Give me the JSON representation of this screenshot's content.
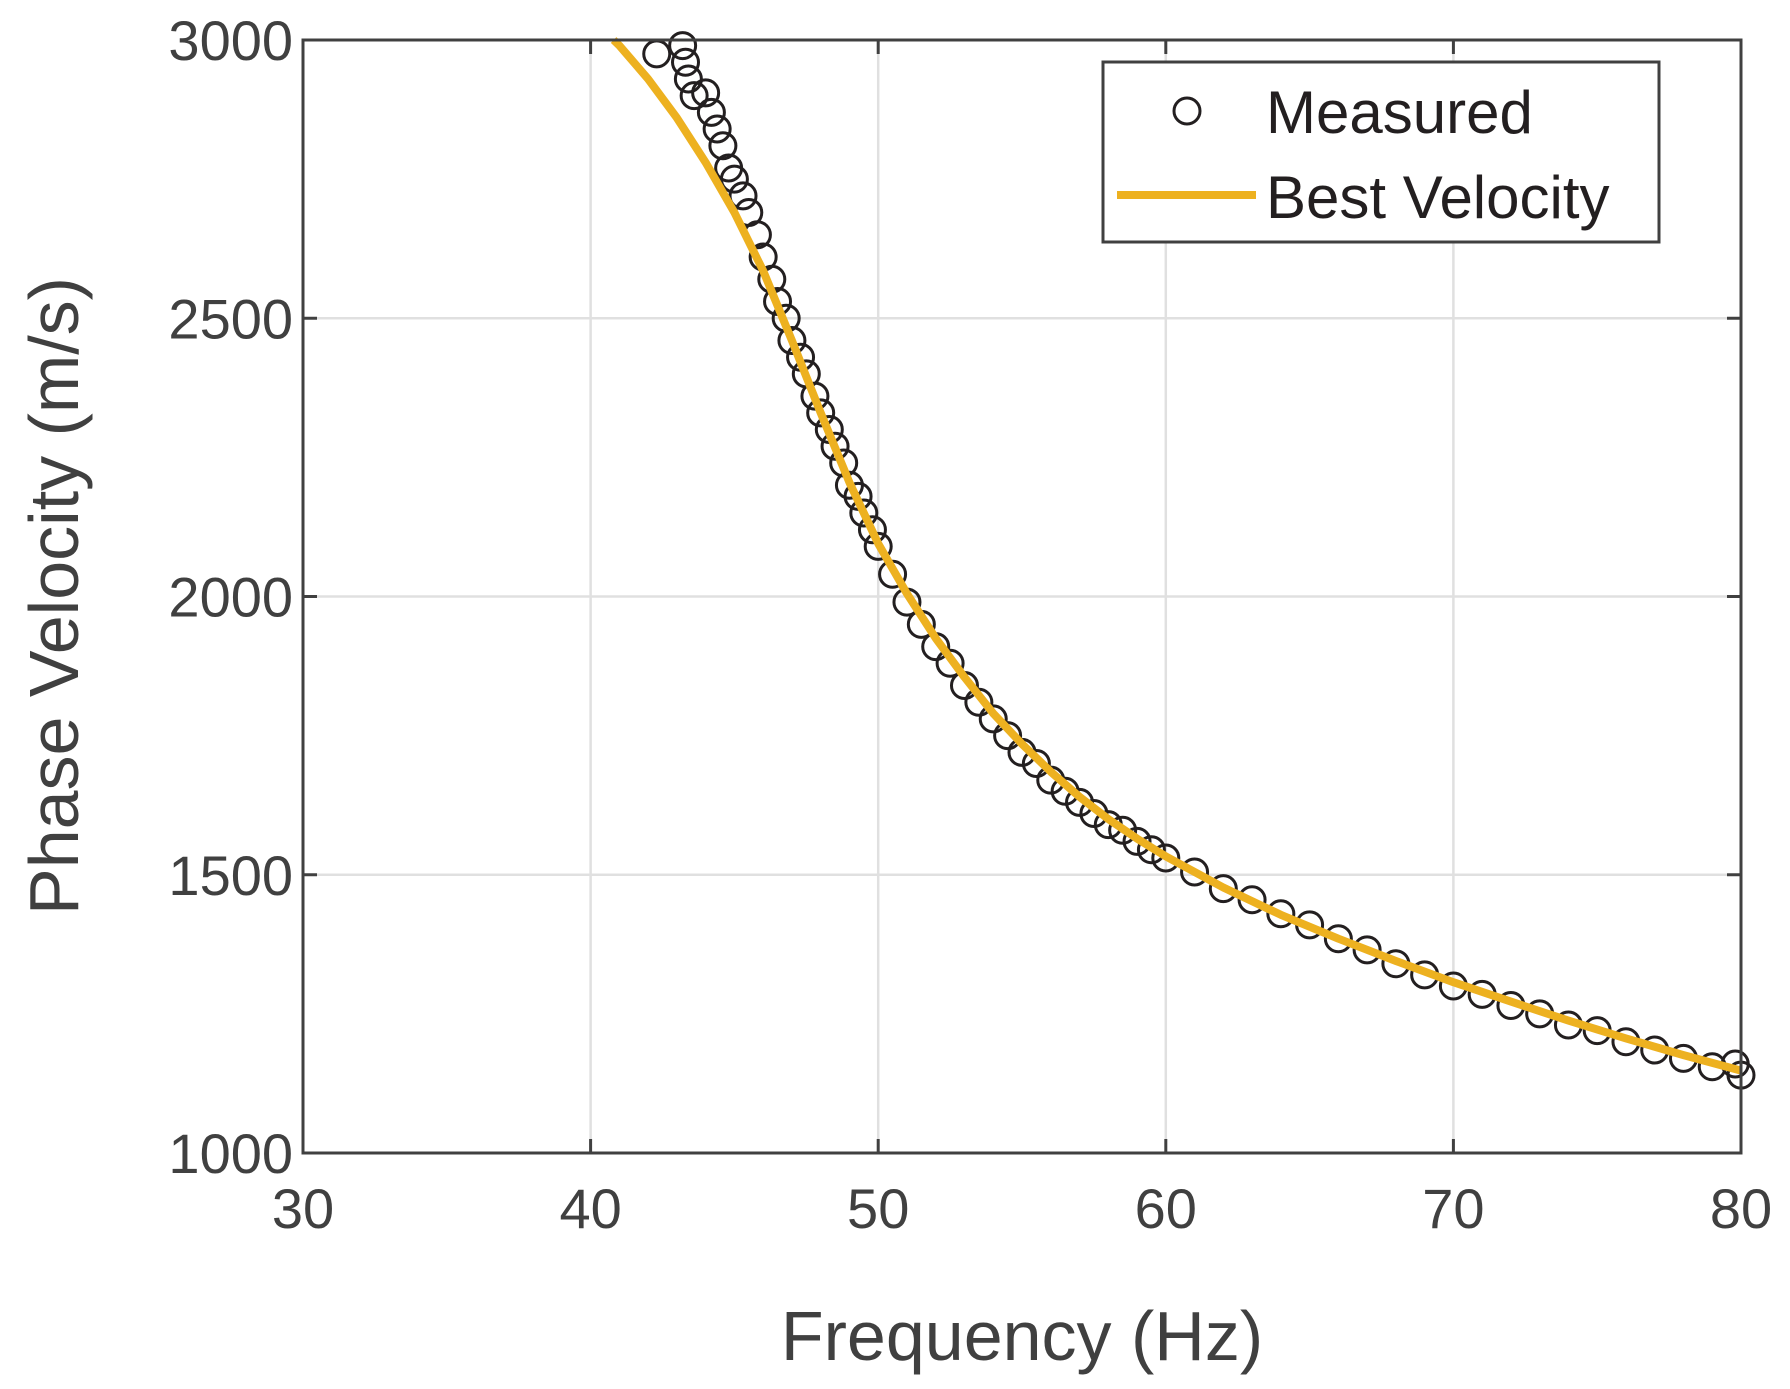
{
  "chart_data": {
    "type": "scatter",
    "title": "",
    "xlabel": "Frequency (Hz)",
    "ylabel": "Phase Velocity (m/s)",
    "xlim": [
      30,
      80
    ],
    "ylim": [
      1000,
      3000
    ],
    "xticks": [
      30,
      40,
      50,
      60,
      70,
      80
    ],
    "yticks": [
      1000,
      1500,
      2000,
      2500,
      3000
    ],
    "grid": true,
    "legend": {
      "placement": "top-right",
      "entries": [
        "Measured",
        "Best Velocity"
      ]
    },
    "colors": {
      "measured": "#231f20",
      "fit": "#edb120",
      "axis": "#404040",
      "grid": "#e0e0e0"
    },
    "series": [
      {
        "name": "Measured",
        "style": "open-circle",
        "x": [
          42.3,
          43.2,
          43.3,
          43.4,
          43.6,
          44.0,
          44.2,
          44.4,
          44.6,
          44.8,
          45.0,
          45.3,
          45.5,
          45.8,
          46.0,
          46.3,
          46.5,
          46.8,
          47.0,
          47.3,
          47.5,
          47.8,
          48.0,
          48.3,
          48.5,
          48.8,
          49.0,
          49.3,
          49.5,
          49.8,
          50.0,
          50.5,
          51.0,
          51.5,
          52.0,
          52.5,
          53.0,
          53.5,
          54.0,
          54.5,
          55.0,
          55.5,
          56.0,
          56.5,
          57.0,
          57.5,
          58.0,
          58.5,
          59.0,
          59.5,
          60.0,
          61.0,
          62.0,
          63.0,
          64.0,
          65.0,
          66.0,
          67.0,
          68.0,
          69.0,
          70.0,
          71.0,
          72.0,
          73.0,
          74.0,
          75.0,
          76.0,
          77.0,
          78.0,
          79.0,
          79.8,
          80.0
        ],
        "y": [
          2975,
          2990,
          2960,
          2930,
          2900,
          2905,
          2870,
          2840,
          2810,
          2770,
          2750,
          2720,
          2690,
          2650,
          2610,
          2570,
          2530,
          2500,
          2460,
          2430,
          2400,
          2360,
          2330,
          2300,
          2270,
          2240,
          2200,
          2180,
          2150,
          2120,
          2090,
          2040,
          1990,
          1950,
          1910,
          1880,
          1840,
          1810,
          1780,
          1750,
          1720,
          1700,
          1670,
          1650,
          1630,
          1610,
          1590,
          1580,
          1560,
          1545,
          1530,
          1505,
          1475,
          1455,
          1430,
          1410,
          1385,
          1365,
          1340,
          1320,
          1300,
          1285,
          1265,
          1250,
          1230,
          1220,
          1200,
          1185,
          1170,
          1155,
          1160,
          1140
        ]
      },
      {
        "name": "Best Velocity",
        "style": "line",
        "x": [
          40.8,
          41,
          42,
          43,
          44,
          45,
          46,
          47,
          48,
          49,
          50,
          51,
          52,
          53,
          54,
          55,
          56,
          57,
          58,
          59,
          60,
          62,
          64,
          66,
          68,
          70,
          72,
          74,
          76,
          78,
          80
        ],
        "y": [
          3000,
          2990,
          2930,
          2860,
          2780,
          2690,
          2585,
          2460,
          2330,
          2205,
          2095,
          2005,
          1925,
          1855,
          1790,
          1735,
          1685,
          1640,
          1600,
          1565,
          1533,
          1477,
          1428,
          1385,
          1345,
          1307,
          1272,
          1238,
          1206,
          1176,
          1148
        ]
      }
    ]
  }
}
